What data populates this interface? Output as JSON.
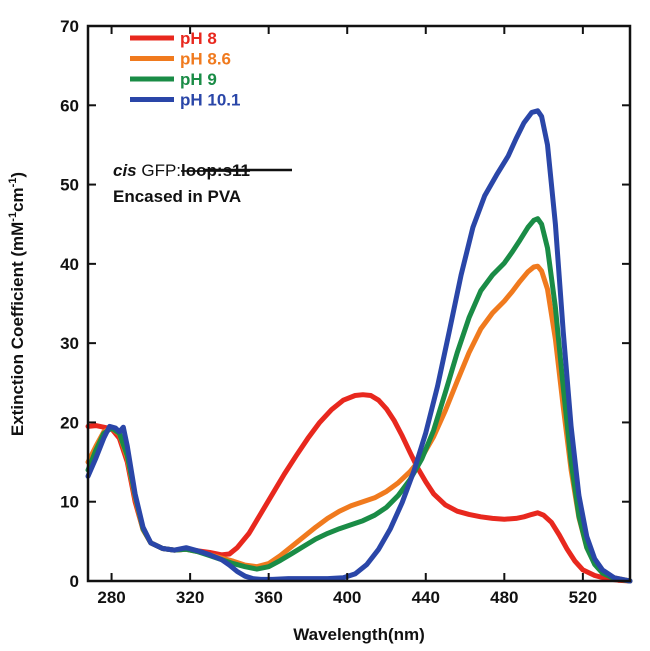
{
  "chart_data": {
    "type": "line",
    "xlabel": "Wavelength(nm)",
    "ylabel": "Extinction Coefficient (mM",
    "ylabel_sup1": "-1",
    "ylabel_mid": "cm",
    "ylabel_sup2": "-1",
    "ylabel_end": ")",
    "xlim": [
      268,
      544
    ],
    "ylim": [
      0,
      70
    ],
    "xticks": [
      280,
      320,
      360,
      400,
      440,
      480,
      520
    ],
    "yticks": [
      0,
      10,
      20,
      30,
      40,
      50,
      60,
      70
    ],
    "grid": false,
    "legend_position": "top-left",
    "annotation": {
      "italic": "cis",
      "normal": " GFP:",
      "strike": "loop:s11",
      "line2": "Encased in PVA"
    },
    "series": [
      {
        "name": "pH 8",
        "color": "#e8281e",
        "points": [
          [
            268,
            19.5
          ],
          [
            272,
            19.6
          ],
          [
            276,
            19.4
          ],
          [
            280,
            19.2
          ],
          [
            284,
            18
          ],
          [
            288,
            15
          ],
          [
            292,
            10
          ],
          [
            296,
            6.5
          ],
          [
            300,
            4.8
          ],
          [
            306,
            4.1
          ],
          [
            312,
            3.9
          ],
          [
            318,
            4.0
          ],
          [
            324,
            3.8
          ],
          [
            330,
            3.6
          ],
          [
            336,
            3.3
          ],
          [
            340,
            3.4
          ],
          [
            344,
            4.2
          ],
          [
            350,
            6.0
          ],
          [
            356,
            8.5
          ],
          [
            362,
            11
          ],
          [
            368,
            13.5
          ],
          [
            374,
            15.8
          ],
          [
            380,
            18
          ],
          [
            386,
            20
          ],
          [
            392,
            21.6
          ],
          [
            398,
            22.8
          ],
          [
            404,
            23.4
          ],
          [
            408,
            23.5
          ],
          [
            412,
            23.4
          ],
          [
            416,
            22.8
          ],
          [
            420,
            21.7
          ],
          [
            424,
            20.2
          ],
          [
            428,
            18.3
          ],
          [
            432,
            16.2
          ],
          [
            436,
            14.2
          ],
          [
            440,
            12.5
          ],
          [
            444,
            11
          ],
          [
            450,
            9.6
          ],
          [
            456,
            8.8
          ],
          [
            462,
            8.4
          ],
          [
            468,
            8.1
          ],
          [
            474,
            7.9
          ],
          [
            480,
            7.8
          ],
          [
            486,
            7.9
          ],
          [
            490,
            8.1
          ],
          [
            494,
            8.4
          ],
          [
            497,
            8.6
          ],
          [
            500,
            8.3
          ],
          [
            504,
            7.4
          ],
          [
            508,
            5.8
          ],
          [
            512,
            4.0
          ],
          [
            516,
            2.5
          ],
          [
            520,
            1.4
          ],
          [
            526,
            0.7
          ],
          [
            532,
            0.3
          ],
          [
            538,
            0.1
          ],
          [
            544,
            0
          ]
        ]
      },
      {
        "name": "pH 8.6",
        "color": "#f07a1e",
        "points": [
          [
            268,
            15
          ],
          [
            272,
            17
          ],
          [
            276,
            18.8
          ],
          [
            280,
            19.3
          ],
          [
            284,
            18.5
          ],
          [
            288,
            15.5
          ],
          [
            292,
            10.5
          ],
          [
            296,
            6.5
          ],
          [
            300,
            4.8
          ],
          [
            306,
            4.1
          ],
          [
            312,
            3.9
          ],
          [
            318,
            4.0
          ],
          [
            324,
            3.7
          ],
          [
            330,
            3.3
          ],
          [
            336,
            2.9
          ],
          [
            342,
            2.5
          ],
          [
            348,
            2.0
          ],
          [
            354,
            1.8
          ],
          [
            360,
            2.2
          ],
          [
            366,
            3.2
          ],
          [
            372,
            4.4
          ],
          [
            378,
            5.6
          ],
          [
            384,
            6.8
          ],
          [
            390,
            7.9
          ],
          [
            396,
            8.8
          ],
          [
            402,
            9.5
          ],
          [
            408,
            10.0
          ],
          [
            414,
            10.5
          ],
          [
            420,
            11.3
          ],
          [
            426,
            12.4
          ],
          [
            432,
            13.8
          ],
          [
            438,
            15.6
          ],
          [
            444,
            18.2
          ],
          [
            450,
            21.5
          ],
          [
            456,
            25.2
          ],
          [
            462,
            28.8
          ],
          [
            468,
            31.8
          ],
          [
            474,
            33.8
          ],
          [
            480,
            35.3
          ],
          [
            484,
            36.5
          ],
          [
            488,
            37.8
          ],
          [
            492,
            39.0
          ],
          [
            495,
            39.6
          ],
          [
            497,
            39.7
          ],
          [
            499,
            39.1
          ],
          [
            502,
            36.8
          ],
          [
            506,
            30.5
          ],
          [
            510,
            22
          ],
          [
            514,
            14
          ],
          [
            518,
            8
          ],
          [
            522,
            4.2
          ],
          [
            526,
            2.2
          ],
          [
            530,
            1.1
          ],
          [
            536,
            0.4
          ],
          [
            544,
            0
          ]
        ]
      },
      {
        "name": "pH 9",
        "color": "#1a8c46",
        "points": [
          [
            268,
            14
          ],
          [
            272,
            16.5
          ],
          [
            276,
            18.6
          ],
          [
            280,
            19.3
          ],
          [
            284,
            18.6
          ],
          [
            288,
            15.8
          ],
          [
            292,
            10.8
          ],
          [
            296,
            6.6
          ],
          [
            300,
            4.8
          ],
          [
            306,
            4.1
          ],
          [
            312,
            3.9
          ],
          [
            318,
            4.0
          ],
          [
            324,
            3.7
          ],
          [
            330,
            3.2
          ],
          [
            336,
            2.7
          ],
          [
            342,
            2.2
          ],
          [
            348,
            1.8
          ],
          [
            354,
            1.5
          ],
          [
            360,
            1.8
          ],
          [
            366,
            2.6
          ],
          [
            372,
            3.5
          ],
          [
            378,
            4.4
          ],
          [
            384,
            5.3
          ],
          [
            390,
            6.0
          ],
          [
            396,
            6.6
          ],
          [
            402,
            7.1
          ],
          [
            408,
            7.6
          ],
          [
            414,
            8.3
          ],
          [
            420,
            9.3
          ],
          [
            426,
            10.8
          ],
          [
            432,
            12.8
          ],
          [
            438,
            15.4
          ],
          [
            444,
            19
          ],
          [
            450,
            23.8
          ],
          [
            456,
            28.8
          ],
          [
            462,
            33.2
          ],
          [
            468,
            36.6
          ],
          [
            474,
            38.6
          ],
          [
            480,
            40.1
          ],
          [
            484,
            41.5
          ],
          [
            488,
            43.0
          ],
          [
            492,
            44.6
          ],
          [
            495,
            45.5
          ],
          [
            497,
            45.7
          ],
          [
            499,
            45.0
          ],
          [
            502,
            42.0
          ],
          [
            506,
            34.5
          ],
          [
            510,
            24.5
          ],
          [
            514,
            15
          ],
          [
            518,
            8.2
          ],
          [
            522,
            4.2
          ],
          [
            526,
            2.1
          ],
          [
            530,
            1.0
          ],
          [
            536,
            0.3
          ],
          [
            544,
            0
          ]
        ]
      },
      {
        "name": "pH 10.1",
        "color": "#2a46a8",
        "points": [
          [
            268,
            13.2
          ],
          [
            272,
            15.5
          ],
          [
            276,
            18
          ],
          [
            279,
            19.5
          ],
          [
            282,
            19.3
          ],
          [
            284,
            18.8
          ],
          [
            286,
            19.4
          ],
          [
            288,
            17
          ],
          [
            292,
            11
          ],
          [
            296,
            6.8
          ],
          [
            300,
            4.8
          ],
          [
            306,
            4.1
          ],
          [
            312,
            3.9
          ],
          [
            318,
            4.2
          ],
          [
            324,
            3.8
          ],
          [
            330,
            3.3
          ],
          [
            336,
            2.7
          ],
          [
            340,
            2.0
          ],
          [
            344,
            1.2
          ],
          [
            348,
            0.6
          ],
          [
            352,
            0.3
          ],
          [
            356,
            0.2
          ],
          [
            362,
            0.2
          ],
          [
            370,
            0.3
          ],
          [
            380,
            0.3
          ],
          [
            390,
            0.3
          ],
          [
            398,
            0.4
          ],
          [
            404,
            0.9
          ],
          [
            410,
            2.1
          ],
          [
            416,
            4.0
          ],
          [
            422,
            6.6
          ],
          [
            428,
            9.9
          ],
          [
            434,
            13.9
          ],
          [
            440,
            18.7
          ],
          [
            446,
            24.6
          ],
          [
            452,
            31.5
          ],
          [
            458,
            38.6
          ],
          [
            464,
            44.6
          ],
          [
            470,
            48.6
          ],
          [
            476,
            51.2
          ],
          [
            482,
            53.6
          ],
          [
            486,
            55.8
          ],
          [
            490,
            57.8
          ],
          [
            494,
            59.1
          ],
          [
            497,
            59.3
          ],
          [
            499,
            58.6
          ],
          [
            502,
            55.0
          ],
          [
            506,
            45.0
          ],
          [
            510,
            31.5
          ],
          [
            514,
            19.5
          ],
          [
            518,
            10.8
          ],
          [
            522,
            5.6
          ],
          [
            526,
            2.8
          ],
          [
            530,
            1.4
          ],
          [
            536,
            0.4
          ],
          [
            544,
            0
          ]
        ]
      }
    ]
  }
}
